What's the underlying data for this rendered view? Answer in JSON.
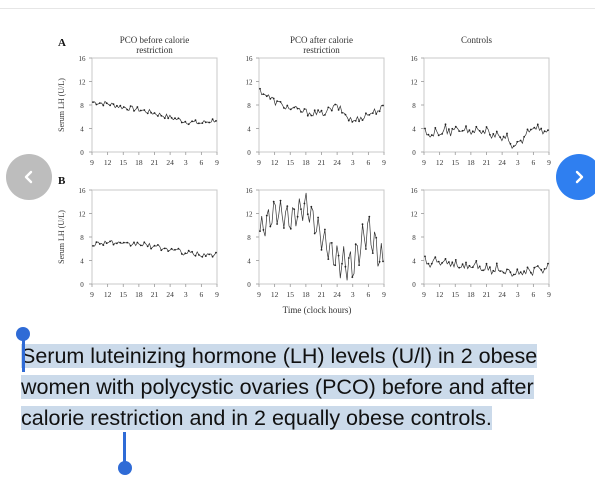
{
  "figure": {
    "row_labels": [
      "A",
      "B"
    ],
    "panel_titles": [
      [
        "PCO before calorie",
        "restriction"
      ],
      [
        "PCO after calorie",
        "restriction"
      ],
      [
        "Controls"
      ]
    ],
    "y_axis_label": "Serum LH (U/L)",
    "x_axis_title": "Time (clock hours)",
    "y_tick_labels": [
      "0",
      "4",
      "8",
      "12",
      "16"
    ],
    "x_tick_labels": [
      "9",
      "12",
      "15",
      "18",
      "21",
      "24",
      "3",
      "6",
      "9"
    ]
  },
  "chart_data": [
    {
      "type": "line",
      "row": "A",
      "panel": "PCO before calorie restriction",
      "xlabel": "",
      "ylabel": "Serum LH (U/L)",
      "ylim": [
        0,
        16
      ],
      "x": [
        9,
        12,
        15,
        18,
        21,
        24,
        27,
        30,
        33
      ],
      "series": [
        {
          "values": [
            8.5,
            8.2,
            7.6,
            7.2,
            6.6,
            5.9,
            5.2,
            4.9,
            5.5
          ]
        }
      ]
    },
    {
      "type": "line",
      "row": "A",
      "panel": "PCO after calorie restriction",
      "xlabel": "",
      "ylabel": "",
      "ylim": [
        0,
        16
      ],
      "x": [
        9,
        12,
        15,
        18,
        21,
        24,
        27,
        30,
        33
      ],
      "series": [
        {
          "values": [
            10.5,
            8.5,
            7.4,
            6.8,
            6.5,
            7.8,
            5.2,
            6.4,
            7.5
          ]
        }
      ]
    },
    {
      "type": "line",
      "row": "A",
      "panel": "Controls",
      "xlabel": "",
      "ylabel": "",
      "ylim": [
        0,
        16
      ],
      "x": [
        9,
        12,
        15,
        18,
        21,
        24,
        27,
        30,
        33
      ],
      "series": [
        {
          "values": [
            2.8,
            3.3,
            3.8,
            3.4,
            3.6,
            2.4,
            1.0,
            4.6,
            3.0
          ]
        }
      ]
    },
    {
      "type": "line",
      "row": "B",
      "panel": "PCO before calorie restriction",
      "xlabel": "",
      "ylabel": "Serum LH (U/L)",
      "ylim": [
        0,
        16
      ],
      "x": [
        9,
        12,
        15,
        18,
        21,
        24,
        27,
        30,
        33
      ],
      "series": [
        {
          "values": [
            6.8,
            7.2,
            6.6,
            6.9,
            6.3,
            5.9,
            5.3,
            5.0,
            4.9
          ]
        }
      ]
    },
    {
      "type": "line",
      "row": "B",
      "panel": "PCO after calorie restriction",
      "xlabel": "",
      "ylabel": "",
      "ylim": [
        0,
        16
      ],
      "x": [
        9,
        12,
        15,
        18,
        21,
        24,
        27,
        30,
        33
      ],
      "series": [
        {
          "values": [
            9.0,
            12.5,
            11.0,
            13.5,
            8.0,
            4.0,
            3.0,
            9.5,
            3.5
          ]
        }
      ]
    },
    {
      "type": "line",
      "row": "B",
      "panel": "Controls",
      "xlabel": "",
      "ylabel": "",
      "ylim": [
        0,
        16
      ],
      "x": [
        9,
        12,
        15,
        18,
        21,
        24,
        27,
        30,
        33
      ],
      "series": [
        {
          "values": [
            3.8,
            3.6,
            3.2,
            3.0,
            2.6,
            2.3,
            1.8,
            2.4,
            3.0
          ]
        }
      ]
    }
  ],
  "caption": {
    "text": "Serum luteinizing hormone (LH) levels (U/l) in 2 obese women with polycystic ovaries (PCO) before and after calorie restriction and in 2 equally obese controls."
  },
  "icons": {
    "prev": "chevron-left-icon",
    "next": "chevron-right-icon"
  },
  "colors": {
    "next_button": "#2f7ff0",
    "prev_button": "#bdbdbd",
    "selection": "#cbdaea",
    "cursor": "#2f6bd6"
  }
}
